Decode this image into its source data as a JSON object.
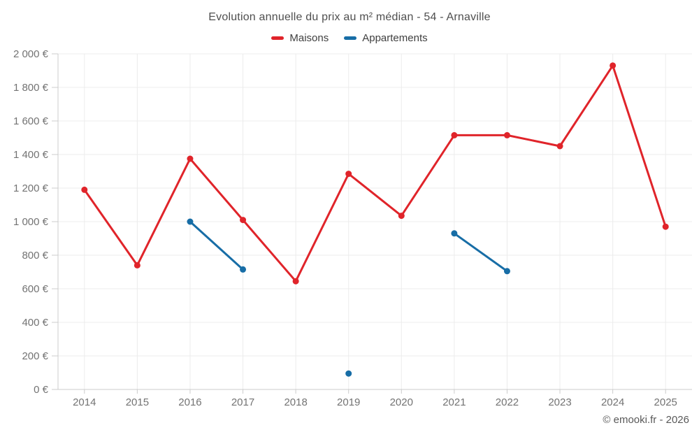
{
  "title": "Evolution annuelle du prix au m² médian - 54 - Arnaville",
  "copyright": "© emooki.fr - 2026",
  "chart_data": {
    "type": "line",
    "title": "Evolution annuelle du prix au m² médian - 54 - Arnaville",
    "xlabel": "",
    "ylabel": "",
    "categories": [
      "2014",
      "2015",
      "2016",
      "2017",
      "2018",
      "2019",
      "2020",
      "2021",
      "2022",
      "2023",
      "2024",
      "2025"
    ],
    "series": [
      {
        "name": "Maisons",
        "color": "#e0242a",
        "values": [
          1190,
          740,
          1375,
          1010,
          645,
          1285,
          1035,
          1515,
          1515,
          1450,
          1930,
          970
        ]
      },
      {
        "name": "Appartements",
        "color": "#176da6",
        "values": [
          null,
          null,
          1000,
          715,
          null,
          95,
          null,
          930,
          705,
          null,
          null,
          null
        ]
      }
    ],
    "ylim": [
      0,
      2000
    ],
    "y_tick_step": 200,
    "y_tick_labels": [
      "0 €",
      "200 €",
      "400 €",
      "600 €",
      "800 €",
      "1 000 €",
      "1 200 €",
      "1 400 €",
      "1 600 €",
      "1 800 €",
      "2 000 €"
    ],
    "grid": true,
    "legend_position": "top",
    "unit": "€"
  }
}
